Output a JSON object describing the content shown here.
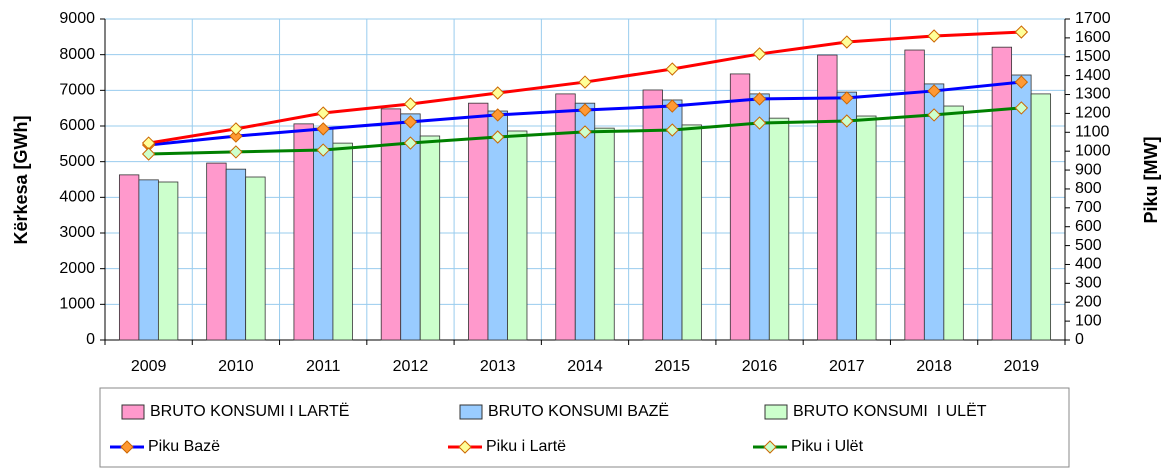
{
  "chart_data": {
    "type": "bar_line",
    "ylabel": "Kërkesa [GWh]",
    "y2label": "Piku [MW]",
    "categories": [
      "2009",
      "2010",
      "2011",
      "2012",
      "2013",
      "2014",
      "2015",
      "2016",
      "2017",
      "2018",
      "2019"
    ],
    "ylim": [
      0,
      9000
    ],
    "yticks": [
      0,
      1000,
      2000,
      3000,
      4000,
      5000,
      6000,
      7000,
      8000,
      9000
    ],
    "y2lim": [
      0,
      1700
    ],
    "y2ticks": [
      0,
      100,
      200,
      300,
      400,
      500,
      600,
      700,
      800,
      900,
      1000,
      1100,
      1200,
      1300,
      1400,
      1500,
      1600,
      1700
    ],
    "grid": true,
    "legend": "bottom",
    "series": [
      {
        "name": "BRUTO KONSUMI I LARTË",
        "kind": "bar",
        "color": "#ff99cc",
        "values": [
          4630,
          4960,
          6060,
          6480,
          6640,
          6900,
          7010,
          7460,
          7990,
          8130,
          8210
        ]
      },
      {
        "name": "BRUTO KONSUMI BAZË",
        "kind": "bar",
        "color": "#99ccff",
        "values": [
          4490,
          4790,
          5940,
          6340,
          6420,
          6640,
          6730,
          6900,
          6950,
          7180,
          7430
        ]
      },
      {
        "name": "BRUTO KONSUMI  I ULËT",
        "kind": "bar",
        "color": "#ccffcc",
        "values": [
          4430,
          4570,
          5520,
          5720,
          5860,
          5940,
          6030,
          6220,
          6280,
          6560,
          6900
        ]
      },
      {
        "name": "Piku Bazë",
        "kind": "line",
        "axis": "y2",
        "color": "#0000ff",
        "marker_color": "#ff9933",
        "values": [
          1033,
          1080,
          1118,
          1155,
          1192,
          1218,
          1239,
          1277,
          1282,
          1319,
          1366
        ]
      },
      {
        "name": "Piku i Lartë",
        "kind": "line",
        "axis": "y2",
        "color": "#ff0000",
        "marker_color": "#ffff99",
        "values": [
          1043,
          1118,
          1202,
          1250,
          1308,
          1366,
          1435,
          1515,
          1578,
          1610,
          1631
        ]
      },
      {
        "name": "Piku i Ulët",
        "kind": "line",
        "axis": "y2",
        "color": "#008000",
        "marker_color": "#ccffcc",
        "values": [
          985,
          996,
          1006,
          1043,
          1075,
          1102,
          1112,
          1149,
          1160,
          1192,
          1229
        ]
      }
    ]
  }
}
